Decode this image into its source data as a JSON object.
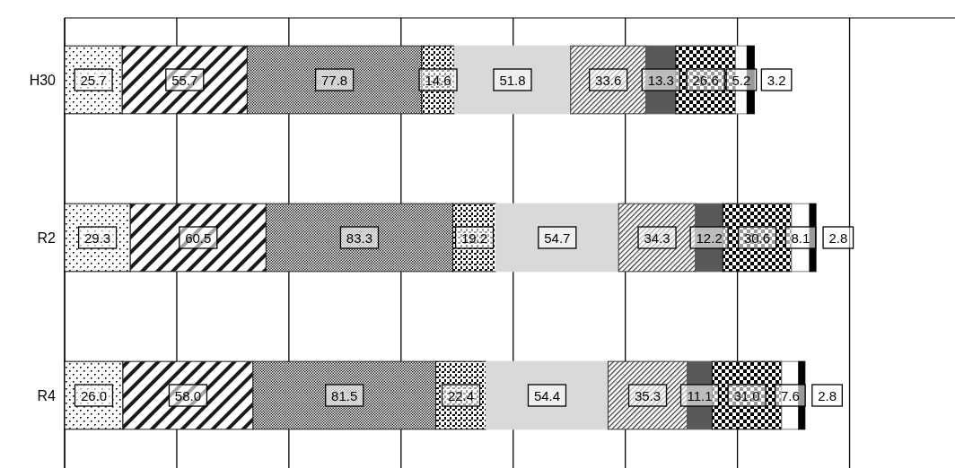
{
  "chart_data": {
    "type": "bar",
    "orientation": "horizontal",
    "stacked": true,
    "categories": [
      "H30",
      "R2",
      "R4"
    ],
    "series": [
      {
        "color": "#000000",
        "values": [
          25.7,
          29.3,
          26.0
        ],
        "value_labels": [
          "25.7",
          "29.3",
          "26.0"
        ]
      },
      {
        "color": "#1a1a1a",
        "values": [
          55.7,
          60.5,
          58.0
        ],
        "value_labels": [
          "55.7",
          "60.5",
          "58.0"
        ]
      },
      {
        "color": "#262626",
        "values": [
          77.8,
          83.3,
          81.5
        ],
        "value_labels": [
          "77.8",
          "83.3",
          "81.5"
        ]
      },
      {
        "color": "#0d0d0d",
        "values": [
          14.6,
          19.2,
          22.4
        ],
        "value_labels": [
          "14.6",
          "19.2",
          "22.4"
        ]
      },
      {
        "color": "#d9d9d9",
        "values": [
          51.8,
          54.7,
          54.4
        ],
        "value_labels": [
          "51.8",
          "54.7",
          "54.4"
        ]
      },
      {
        "color": "#333333",
        "values": [
          33.6,
          34.3,
          35.3
        ],
        "value_labels": [
          "33.6",
          "34.3",
          "35.3"
        ]
      },
      {
        "color": "#595959",
        "values": [
          13.3,
          12.2,
          11.1
        ],
        "value_labels": [
          "13.3",
          "12.2",
          "11.1"
        ]
      },
      {
        "color": "#050505",
        "values": [
          26.6,
          30.6,
          31.0
        ],
        "value_labels": [
          "26.6",
          "30.6",
          "31.0"
        ]
      },
      {
        "color": "#ffffff",
        "values": [
          5.2,
          8.1,
          7.6
        ],
        "value_labels": [
          "5.2",
          "8.1",
          "7.6"
        ]
      },
      {
        "color": "#000001",
        "values": [
          3.2,
          2.8,
          2.8
        ],
        "value_labels": [
          "3.2",
          "2.8",
          "2.8"
        ]
      }
    ],
    "xlim": [
      0,
      397
    ],
    "xticks": [
      {
        "value": 0,
        "label": null
      },
      {
        "value": 50,
        "label": null
      },
      {
        "value": 100,
        "label": null
      },
      {
        "value": 150,
        "label": null
      },
      {
        "value": 200,
        "label": null
      },
      {
        "value": 250,
        "label": null
      },
      {
        "value": 300,
        "label": null
      },
      {
        "value": 350,
        "label": null
      }
    ],
    "tick_labels": "y",
    "grid": "x"
  }
}
